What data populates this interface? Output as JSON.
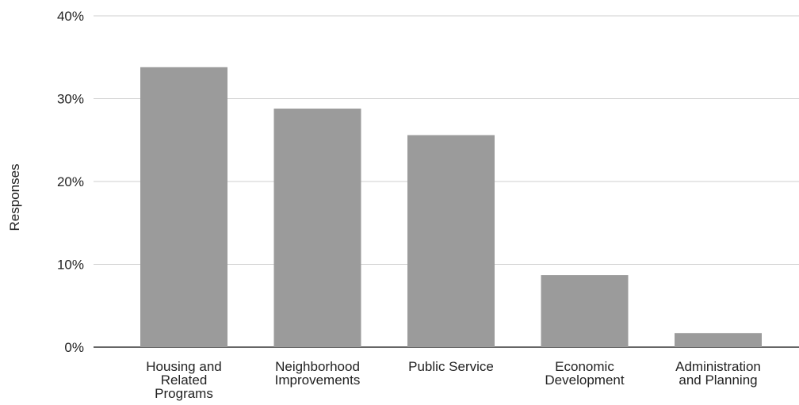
{
  "chart_data": {
    "type": "bar",
    "title": "",
    "xlabel": "",
    "ylabel": "Responses",
    "categories": [
      [
        "Housing and",
        "Related",
        "Programs"
      ],
      [
        "Neighborhood",
        "Improvements"
      ],
      [
        "Public Service"
      ],
      [
        "Economic",
        "Development"
      ],
      [
        "Administration",
        "and Planning"
      ]
    ],
    "values": [
      33.8,
      28.8,
      25.6,
      8.7,
      1.7
    ],
    "value_unit": "%",
    "ylim": [
      0,
      40
    ],
    "yticks": [
      "0%",
      "10%",
      "20%",
      "30%",
      "40%"
    ],
    "grid": true,
    "legend": "none",
    "bar_color": "#9b9b9b"
  }
}
